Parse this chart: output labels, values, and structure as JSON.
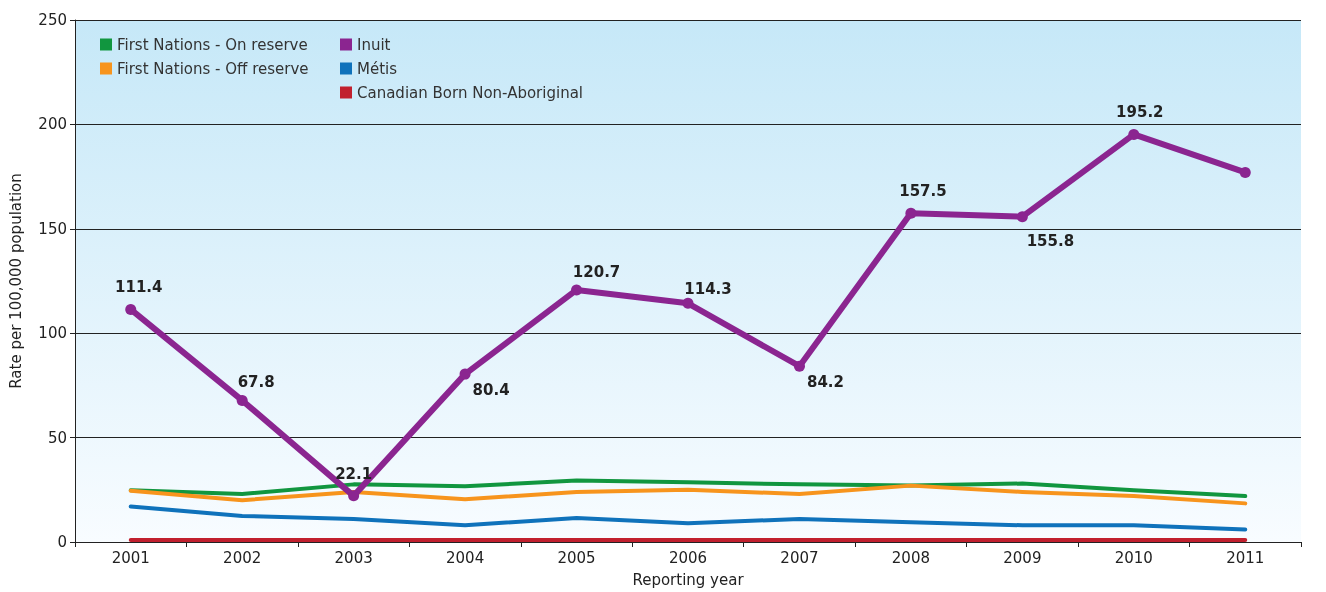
{
  "chart_data": {
    "type": "line",
    "xlabel": "Reporting year",
    "ylabel": "Rate per 100,000 population",
    "categories": [
      "2001",
      "2002",
      "2003",
      "2004",
      "2005",
      "2006",
      "2007",
      "2008",
      "2009",
      "2010",
      "2011"
    ],
    "series": [
      {
        "name": "First Nations - On reserve",
        "color": "#11963f",
        "values": [
          24.8,
          23,
          27.6,
          26.7,
          29.5,
          28.6,
          27.6,
          27,
          28,
          24.8,
          22
        ]
      },
      {
        "name": "First Nations - Off reserve",
        "color": "#f7941d",
        "values": [
          24.5,
          20,
          24,
          20.5,
          24,
          25,
          23,
          27,
          24,
          22,
          18.5
        ]
      },
      {
        "name": "Inuit",
        "color": "#8b2590",
        "marker": "circle",
        "values": [
          111.4,
          67.8,
          22.1,
          80.4,
          120.7,
          114.3,
          84.2,
          157.5,
          155.8,
          195.2,
          177
        ],
        "value_labels": [
          "111.4",
          "67.8",
          "22.1",
          "80.4",
          "120.7",
          "114.3",
          "84.2",
          "157.5",
          "155.8",
          "195.2",
          null
        ]
      },
      {
        "name": "Métis",
        "color": "#0f72bb",
        "values": [
          17,
          12.5,
          11,
          8,
          11.5,
          9,
          11,
          9.5,
          8,
          8,
          6
        ]
      },
      {
        "name": "Canadian Born Non-Aboriginal",
        "color": "#c1202e",
        "values": [
          1,
          1,
          1,
          1,
          1,
          1,
          1,
          1,
          1,
          1,
          1
        ]
      }
    ],
    "ylim": [
      0,
      250
    ],
    "yticks": [
      0,
      50,
      100,
      150,
      200,
      250
    ],
    "grid": "y",
    "legend": "top left"
  }
}
